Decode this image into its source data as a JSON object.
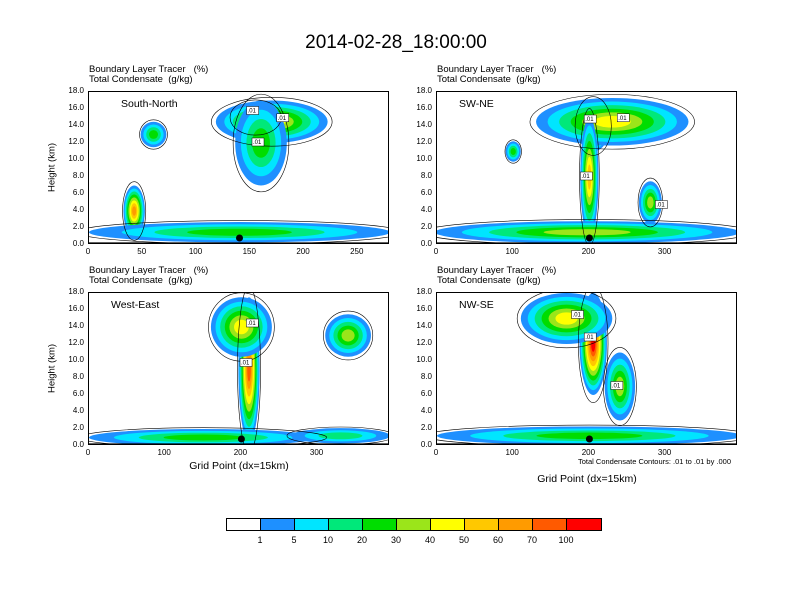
{
  "title": "2014-02-28_18:00:00",
  "footnote": "Total Condensate Contours: .01 to .01 by .000",
  "chart_data": [
    {
      "type": "heatmap",
      "panel_title": "South-North",
      "variable": "Boundary Layer Tracer",
      "variable_units": "(%)",
      "contour_variable": "Total Condensate",
      "contour_units": "(g/kg)",
      "ylabel": "Height (km)",
      "xlabel": "",
      "xlim": [
        0,
        280
      ],
      "ylim": [
        0,
        18
      ],
      "xticks": [
        "0",
        "50",
        "100",
        "150",
        "200",
        "250"
      ],
      "yticks": [
        "0.0",
        "2.0",
        "4.0",
        "6.0",
        "8.0",
        "10.0",
        "12.0",
        "14.0",
        "16.0",
        "18.0"
      ],
      "contour_labels": [
        ".01",
        ".01",
        ".01"
      ],
      "terrain_marker_x": 140,
      "plumes": [
        {
          "x": 155,
          "y": 15,
          "rx": 22,
          "ry": 1.8,
          "level": 10
        },
        {
          "x": 170,
          "y": 14.5,
          "rx": 52,
          "ry": 2.5,
          "level": 6
        },
        {
          "x": 160,
          "y": 12,
          "rx": 24,
          "ry": 5,
          "level": 4
        },
        {
          "x": 42,
          "y": 4,
          "rx": 10,
          "ry": 3,
          "level": 8
        },
        {
          "x": 60,
          "y": 13,
          "rx": 12,
          "ry": 1.5,
          "level": 4
        },
        {
          "x": 140,
          "y": 1.5,
          "rx": 140,
          "ry": 1.2,
          "level": 4
        }
      ]
    },
    {
      "type": "heatmap",
      "panel_title": "SW-NE",
      "variable": "Boundary Layer Tracer",
      "variable_units": "(%)",
      "contour_variable": "Total Condensate",
      "contour_units": "(g/kg)",
      "ylabel": "",
      "xlabel": "",
      "xlim": [
        0,
        395
      ],
      "ylim": [
        0,
        18
      ],
      "xticks": [
        "0",
        "100",
        "200",
        "300"
      ],
      "yticks": [
        "0.0",
        "2.0",
        "4.0",
        "6.0",
        "8.0",
        "10.0",
        "12.0",
        "14.0",
        "16.0",
        "18.0"
      ],
      "contour_labels": [
        ".01",
        ".01",
        ".01",
        ".01"
      ],
      "terrain_marker_x": 200,
      "plumes": [
        {
          "x": 205,
          "y": 14,
          "rx": 22,
          "ry": 3,
          "level": 10
        },
        {
          "x": 230,
          "y": 14.5,
          "rx": 100,
          "ry": 2.8,
          "level": 6
        },
        {
          "x": 200,
          "y": 8,
          "rx": 12,
          "ry": 7,
          "level": 7
        },
        {
          "x": 280,
          "y": 5,
          "rx": 15,
          "ry": 2.5,
          "level": 5
        },
        {
          "x": 100,
          "y": 11,
          "rx": 10,
          "ry": 1.2,
          "level": 4
        },
        {
          "x": 197,
          "y": 1.5,
          "rx": 200,
          "ry": 1.3,
          "level": 5
        }
      ]
    },
    {
      "type": "heatmap",
      "panel_title": "West-East",
      "variable": "Boundary Layer Tracer",
      "variable_units": "(%)",
      "contour_variable": "Total Condensate",
      "contour_units": "(g/kg)",
      "ylabel": "Height (km)",
      "xlabel": "Grid Point (dx=15km)",
      "xlim": [
        0,
        395
      ],
      "ylim": [
        0,
        18
      ],
      "xticks": [
        "0",
        "100",
        "200",
        "300"
      ],
      "yticks": [
        "0.0",
        "2.0",
        "4.0",
        "6.0",
        "8.0",
        "10.0",
        "12.0",
        "14.0",
        "16.0",
        "18.0"
      ],
      "contour_labels": [
        ".01",
        ".01"
      ],
      "terrain_marker_x": 200,
      "plumes": [
        {
          "x": 210,
          "y": 9,
          "rx": 14,
          "ry": 8.5,
          "level": 9
        },
        {
          "x": 200,
          "y": 14,
          "rx": 40,
          "ry": 3.5,
          "level": 6
        },
        {
          "x": 340,
          "y": 13,
          "rx": 30,
          "ry": 2.5,
          "level": 5
        },
        {
          "x": 150,
          "y": 1,
          "rx": 150,
          "ry": 1.0,
          "level": 4
        },
        {
          "x": 330,
          "y": 1.2,
          "rx": 65,
          "ry": 0.9,
          "level": 3
        }
      ]
    },
    {
      "type": "heatmap",
      "panel_title": "NW-SE",
      "variable": "Boundary Layer Tracer",
      "variable_units": "(%)",
      "contour_variable": "Total Condensate",
      "contour_units": "(g/kg)",
      "ylabel": "",
      "xlabel": "Grid Point (dx=15km)",
      "xlim": [
        0,
        395
      ],
      "ylim": [
        0,
        18
      ],
      "xticks": [
        "0",
        "100",
        "200",
        "300"
      ],
      "yticks": [
        "0.0",
        "2.0",
        "4.0",
        "6.0",
        "8.0",
        "10.0",
        "12.0",
        "14.0",
        "16.0",
        "18.0"
      ],
      "contour_labels": [
        ".01",
        ".01",
        ".01"
      ],
      "terrain_marker_x": 200,
      "plumes": [
        {
          "x": 205,
          "y": 12,
          "rx": 18,
          "ry": 6,
          "level": 10
        },
        {
          "x": 170,
          "y": 15,
          "rx": 60,
          "ry": 3,
          "level": 6
        },
        {
          "x": 240,
          "y": 7,
          "rx": 20,
          "ry": 4,
          "level": 5
        },
        {
          "x": 200,
          "y": 1.2,
          "rx": 200,
          "ry": 1.1,
          "level": 4
        }
      ]
    }
  ],
  "legend": {
    "colors": [
      "#ffffff",
      "#1e90ff",
      "#00e5ff",
      "#00e87a",
      "#00dd00",
      "#9be51a",
      "#ffff00",
      "#ffc800",
      "#ff9b00",
      "#ff5a00",
      "#ff0000"
    ],
    "labels": [
      "1",
      "5",
      "10",
      "20",
      "30",
      "40",
      "50",
      "60",
      "70",
      "100"
    ]
  }
}
